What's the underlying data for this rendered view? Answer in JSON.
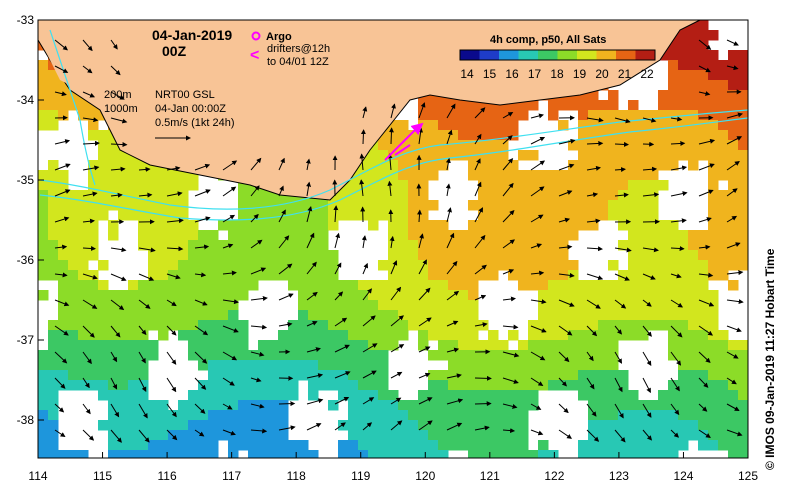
{
  "map": {
    "date_title": "04-Jan-2019",
    "time_title": "00Z",
    "argo_label": "Argo",
    "drifters_line1": "drifters@12h",
    "drifters_line2": "to 04/01 12Z",
    "drifter_symbol": "<",
    "isobath_200": "200m",
    "isobath_1000": "1000m",
    "product_line1": "NRT00 GSL",
    "product_line2": "04-Jan 00:00Z",
    "scale_label": "0.5m/s (1kt 24h)",
    "colorbar_title": "4h comp, p50, All Sats",
    "colorbar_ticks": [
      "14",
      "15",
      "16",
      "17",
      "18",
      "19",
      "20",
      "21",
      "22"
    ],
    "colorbar_colors": [
      "#0a0a8c",
      "#1e3cc8",
      "#1e96dc",
      "#28c8b4",
      "#3cc864",
      "#8cdc28",
      "#d2e61e",
      "#f0b41e",
      "#e66414",
      "#b41e14"
    ],
    "x_ticks": [
      "114",
      "115",
      "116",
      "117",
      "118",
      "119",
      "120",
      "121",
      "122",
      "123",
      "124",
      "125"
    ],
    "y_ticks": [
      "-33",
      "-34",
      "-35",
      "-36",
      "-37",
      "-38"
    ],
    "credit": "© IMOS 09-Jan-2019 11:27 Hobart Time",
    "colors": {
      "land": "#f8c496",
      "coast": "#000000",
      "isobath": "#40e0f0",
      "argo": "#ff00ff",
      "ocean_blank": "#ffffff"
    }
  }
}
